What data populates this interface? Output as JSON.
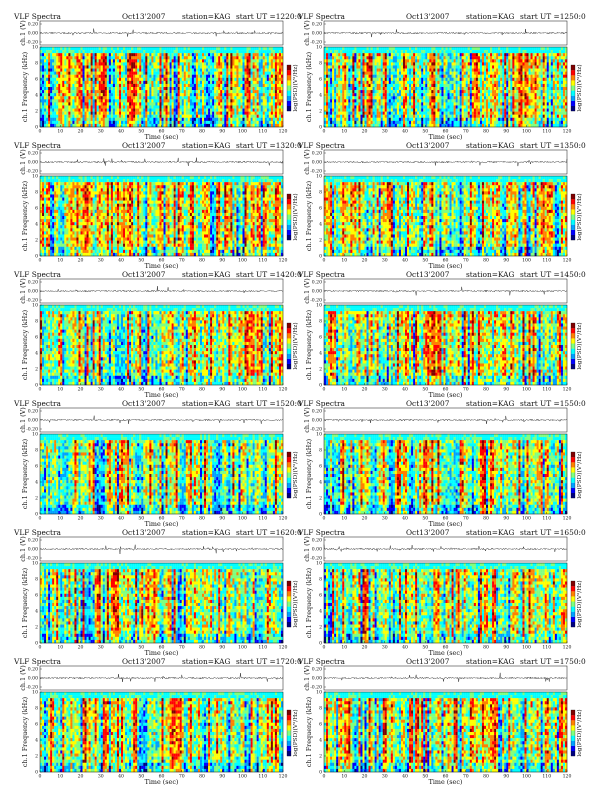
{
  "chart_data": [
    {
      "type": "heatmap",
      "title": "VLF Spectra",
      "date": "Oct13'2007",
      "station": "station=KAG",
      "start": "start UT =1220:0",
      "wave_ylabel": "ch.1 (V)",
      "wave_ticks": [
        "0.20",
        "0.00",
        "-0.20"
      ],
      "ylabel": "ch.1 Frequency (kHz)",
      "xlabel": "Time (sec)",
      "xlim": [
        0,
        120
      ],
      "ylim": [
        0,
        10
      ],
      "colorbar_label": "log(PSD)(V²/Hz)"
    },
    {
      "type": "heatmap",
      "title": "VLF Spectra",
      "date": "Oct13'2007",
      "station": "station=KAG",
      "start": "start UT =1250:0",
      "wave_ylabel": "ch.1 (V)",
      "wave_ticks": [
        "0.20",
        "0.00",
        "-0.20"
      ],
      "ylabel": "ch.1 Frequency (kHz)",
      "xlabel": "Time (sec)",
      "xlim": [
        0,
        120
      ],
      "ylim": [
        0,
        10
      ],
      "colorbar_label": "log(PSD)(V²/Hz)"
    },
    {
      "type": "heatmap",
      "title": "VLF Spectra",
      "date": "Oct13'2007",
      "station": "station=KAG",
      "start": "start UT =1320:0",
      "wave_ylabel": "ch.1 (V)",
      "wave_ticks": [
        "0.20",
        "0.00",
        "-0.20"
      ],
      "ylabel": "ch.1 Frequency (kHz)",
      "xlabel": "Time (sec)",
      "xlim": [
        0,
        120
      ],
      "ylim": [
        0,
        10
      ],
      "colorbar_label": "log(PSD)(V²/Hz)"
    },
    {
      "type": "heatmap",
      "title": "VLF Spectra",
      "date": "Oct13'2007",
      "station": "station=KAG",
      "start": "start UT =1350:0",
      "wave_ylabel": "ch.1 (V)",
      "wave_ticks": [
        "0.20",
        "0.00",
        "-0.20"
      ],
      "ylabel": "ch.1 Frequency (kHz)",
      "xlabel": "Time (sec)",
      "xlim": [
        0,
        120
      ],
      "ylim": [
        0,
        10
      ],
      "colorbar_label": "log(PSD)(V²/Hz)"
    },
    {
      "type": "heatmap",
      "title": "VLF Spectra",
      "date": "Oct13'2007",
      "station": "station=KAG",
      "start": "start UT =1420:0",
      "wave_ylabel": "ch.1 (V)",
      "wave_ticks": [
        "0.20",
        "0.00",
        "-0.20"
      ],
      "ylabel": "ch.1 Frequency (kHz)",
      "xlabel": "Time (sec)",
      "xlim": [
        0,
        120
      ],
      "ylim": [
        0,
        10
      ],
      "colorbar_label": "log(PSD)(V²/Hz)"
    },
    {
      "type": "heatmap",
      "title": "VLF Spectra",
      "date": "Oct13'2007",
      "station": "station=KAG",
      "start": "start UT =1450:0",
      "wave_ylabel": "ch.1 (V)",
      "wave_ticks": [
        "0.20",
        "0.00",
        "-0.20"
      ],
      "ylabel": "ch.1 Frequency (kHz)",
      "xlabel": "Time (sec)",
      "xlim": [
        0,
        120
      ],
      "ylim": [
        0,
        10
      ],
      "colorbar_label": "log(PSD)(V²/Hz)"
    },
    {
      "type": "heatmap",
      "title": "VLF Spectra",
      "date": "Oct13'2007",
      "station": "station=KAG",
      "start": "start UT =1520:0",
      "wave_ylabel": "ch.1 (V)",
      "wave_ticks": [
        "0.20",
        "0.00",
        "-0.20"
      ],
      "ylabel": "ch.1 Frequency (kHz)",
      "xlabel": "Time (sec)",
      "xlim": [
        0,
        120
      ],
      "ylim": [
        0,
        10
      ],
      "colorbar_label": "log(PSD)(V²/Hz)"
    },
    {
      "type": "heatmap",
      "title": "VLF Spectra",
      "date": "Oct13'2007",
      "station": "station=KAG",
      "start": "start UT =1550:0",
      "wave_ylabel": "ch.1 (V)",
      "wave_ticks": [
        "0.20",
        "0.00",
        "-0.20"
      ],
      "ylabel": "ch.1 Frequency (kHz)",
      "xlabel": "Time (sec)",
      "xlim": [
        0,
        120
      ],
      "ylim": [
        0,
        10
      ],
      "colorbar_label": "log(PSD)(V²/Hz)"
    },
    {
      "type": "heatmap",
      "title": "VLF Spectra",
      "date": "Oct13'2007",
      "station": "station=KAG",
      "start": "start UT =1620:0",
      "wave_ylabel": "ch.1 (V)",
      "wave_ticks": [
        "0.20",
        "0.00",
        "-0.20"
      ],
      "ylabel": "ch.1 Frequency (kHz)",
      "xlabel": "Time (sec)",
      "xlim": [
        0,
        120
      ],
      "ylim": [
        0,
        10
      ],
      "colorbar_label": "log(PSD)(V²/Hz)"
    },
    {
      "type": "heatmap",
      "title": "VLF Spectra",
      "date": "Oct13'2007",
      "station": "station=KAG",
      "start": "start UT =1650:0",
      "wave_ylabel": "ch.1 (V)",
      "wave_ticks": [
        "0.20",
        "0.00",
        "-0.20"
      ],
      "ylabel": "ch.1 Frequency (kHz)",
      "xlabel": "Time (sec)",
      "xlim": [
        0,
        120
      ],
      "ylim": [
        0,
        10
      ],
      "colorbar_label": "log(PSD)(V²/Hz)"
    },
    {
      "type": "heatmap",
      "title": "VLF Spectra",
      "date": "Oct13'2007",
      "station": "station=KAG",
      "start": "start UT =1720:0",
      "wave_ylabel": "ch.1 (V)",
      "wave_ticks": [
        "0.20",
        "0.00",
        "-0.20"
      ],
      "ylabel": "ch.1 Frequency (kHz)",
      "xlabel": "Time (sec)",
      "xlim": [
        0,
        120
      ],
      "ylim": [
        0,
        10
      ],
      "colorbar_label": "log(PSD)(V²/Hz)"
    },
    {
      "type": "heatmap",
      "title": "VLF Spectra",
      "date": "Oct13'2007",
      "station": "station=KAG",
      "start": "start UT =1750:0",
      "wave_ylabel": "ch.1 (V)",
      "wave_ticks": [
        "0.20",
        "0.00",
        "-0.20"
      ],
      "ylabel": "ch.1 Frequency (kHz)",
      "xlabel": "Time (sec)",
      "xlim": [
        0,
        120
      ],
      "ylim": [
        0,
        10
      ],
      "colorbar_label": "log(PSD)(V²/Hz)"
    }
  ],
  "colors": {
    "colormap": [
      "#00007f",
      "#0000ff",
      "#00a0ff",
      "#00ffff",
      "#7fff7f",
      "#ffff00",
      "#ff8000",
      "#ff0000",
      "#7f0000"
    ],
    "axes": "#111111",
    "background": "#ffffff"
  }
}
